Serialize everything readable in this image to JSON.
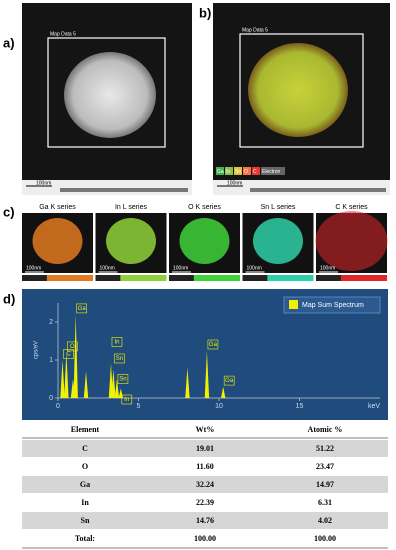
{
  "panels": {
    "a": {
      "label": "a)",
      "frame_title": "Map Data 5",
      "scale": "100nm"
    },
    "b": {
      "label": "b)",
      "frame_title": "Map Data 5",
      "scale": "100nm",
      "legend": [
        "Ga",
        "In",
        "Sn",
        "O",
        "C",
        "Electron"
      ]
    },
    "c": {
      "label": "c)",
      "maps": [
        {
          "title": "Ga K series",
          "scale": "100nm",
          "color": "#e07a20"
        },
        {
          "title": "In L series",
          "scale": "100nm",
          "color": "#8fd13a"
        },
        {
          "title": "O K series",
          "scale": "100nm",
          "color": "#3fd23a"
        },
        {
          "title": "Sn L series",
          "scale": "100nm",
          "color": "#2fd0a8"
        },
        {
          "title": "C K series",
          "scale": "100nm",
          "color": "#e0262a"
        }
      ]
    },
    "d": {
      "label": "d)"
    }
  },
  "chart_data": {
    "type": "spike",
    "xlabel": "keV",
    "ylabel": "cps/eV",
    "x": [
      0.28,
      0.52,
      0.93,
      1.1,
      1.74,
      3.29,
      3.44,
      3.66,
      3.9,
      8.04,
      9.25,
      10.26
    ],
    "series": [
      {
        "name": "Map Sum Spectrum",
        "color": "#f2f200",
        "values": [
          1.0,
          1.2,
          0.5,
          2.2,
          0.7,
          0.9,
          0.75,
          0.5,
          0.25,
          0.8,
          1.25,
          0.3
        ]
      }
    ],
    "peak_labels": [
      "C",
      "O",
      null,
      "Ga",
      null,
      "In",
      "Sn",
      "Sn",
      "In",
      null,
      "Ga",
      "Ga"
    ],
    "xlim": [
      0,
      20
    ],
    "xticks": [
      0,
      5,
      10,
      15
    ],
    "ylim": [
      0,
      2.5
    ],
    "yticks": [
      0,
      1,
      2
    ]
  },
  "table": {
    "header": [
      "Element",
      "Wt%",
      "Atomic %"
    ],
    "rows": [
      [
        "C",
        "19.01",
        "51.22"
      ],
      [
        "O",
        "11.60",
        "23.47"
      ],
      [
        "Ga",
        "32.24",
        "14.97"
      ],
      [
        "In",
        "22.39",
        "6.31"
      ],
      [
        "Sn",
        "14.76",
        "4.02"
      ],
      [
        "Total:",
        "100.00",
        "100.00"
      ]
    ]
  }
}
